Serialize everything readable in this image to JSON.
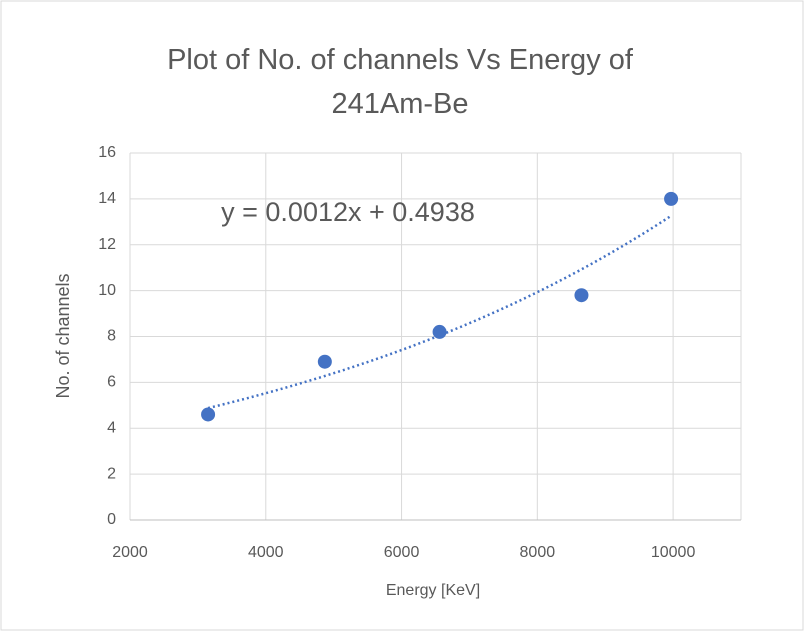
{
  "chart_data": {
    "type": "scatter",
    "title": "Plot of No. of channels Vs Energy of 241Am-Be",
    "annotation": "y = 0.0012x + 0.4938",
    "x_label": "Energy [KeV]",
    "y_label": "No. of channels",
    "x": [
      3150,
      4870,
      6560,
      8650,
      9970
    ],
    "values": [
      4.6,
      6.9,
      8.2,
      9.8,
      14.0
    ],
    "color": "#4472c4",
    "trendline": true,
    "xlim": [
      2000,
      11000
    ],
    "xticks": [
      2000,
      4000,
      6000,
      8000,
      10000
    ],
    "ylim": [
      0,
      16
    ],
    "yticks": [
      0,
      2,
      4,
      6,
      8,
      10,
      12,
      14,
      16
    ],
    "grid": true
  }
}
